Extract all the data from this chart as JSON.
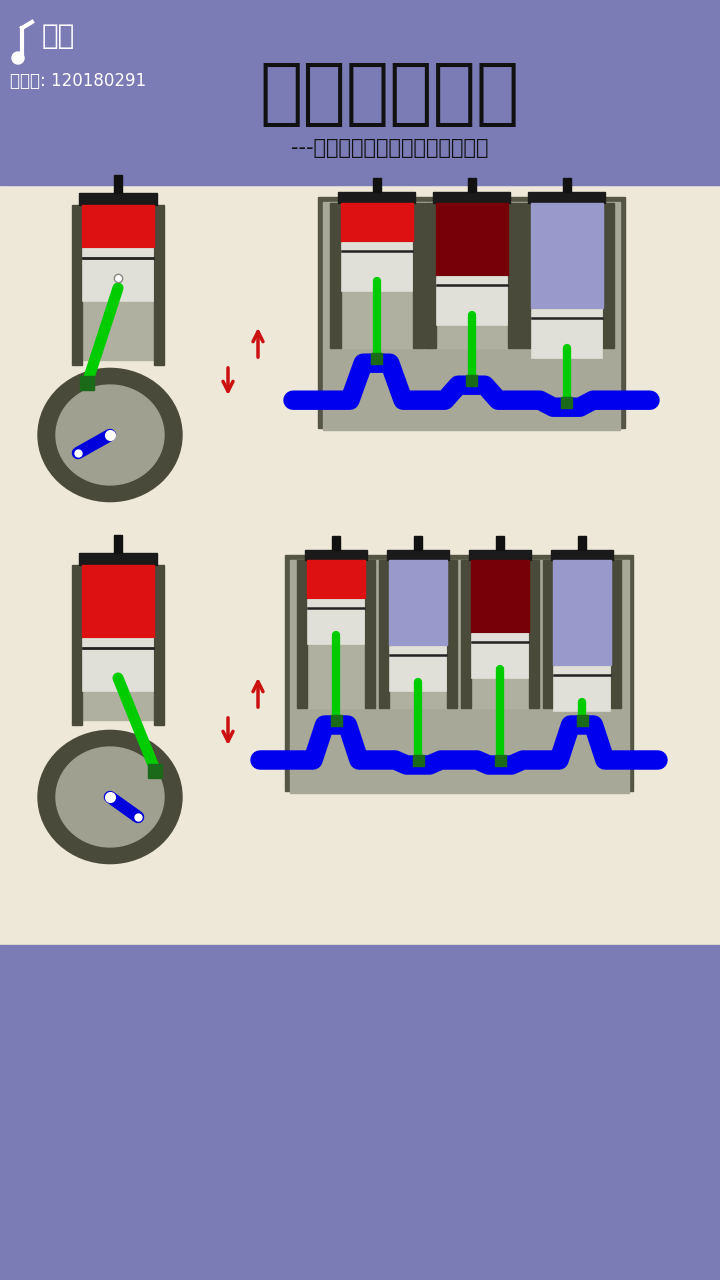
{
  "bg_color": "#7b7bb5",
  "content_bg": "#ede8d8",
  "title": "机械原理动画",
  "subtitle": "---关注我，和你一起发现机械之美",
  "tiktok_label": "抖音",
  "account_label": "抖音号: 120180291",
  "cylinder_wall_dark": "#4a4a3a",
  "cylinder_interior": "#b0b0a0",
  "block_outer": "#555545",
  "block_inner": "#a8a898",
  "piston_color": "#e0e0d8",
  "piston_edge": "#888880",
  "piston_line": "#222222",
  "rod_color": "#00cc00",
  "crank_blue": "#0000dd",
  "crank_green_box": "#1a6a1a",
  "red_bright": "#dd1111",
  "red_dark": "#770008",
  "blue_purple": "#9999cc",
  "crankshaft_blue": "#0000ee",
  "pin_color": "#111111",
  "cap_color": "#1a1a1a",
  "wheel_dark": "#4a4a3a",
  "wheel_light": "#a0a090",
  "arrow_red": "#cc1111"
}
